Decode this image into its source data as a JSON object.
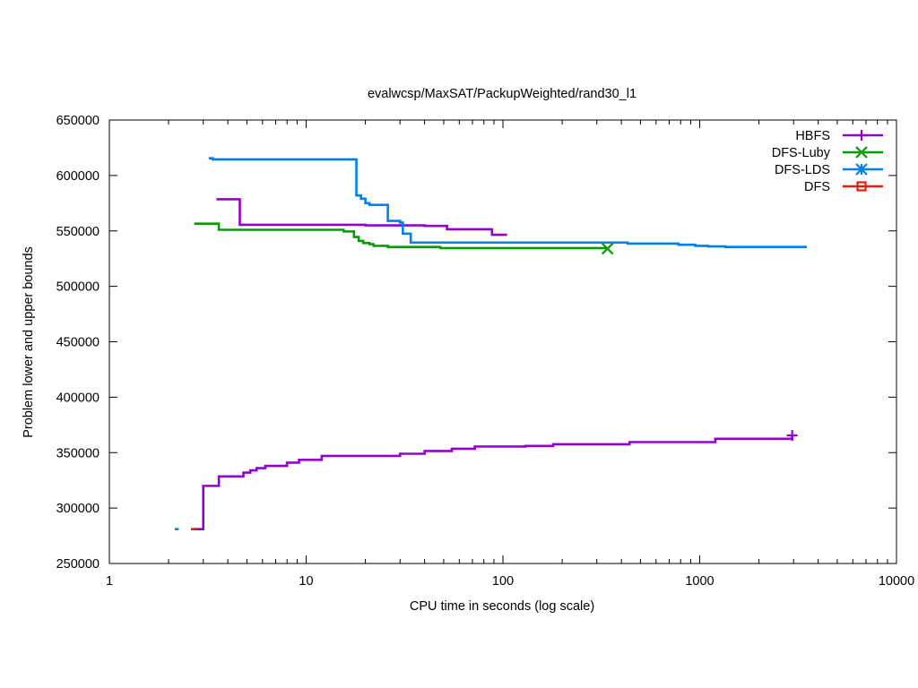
{
  "chart_data": {
    "type": "line",
    "title": "evalwcsp/MaxSAT/PackupWeighted/rand30_l1",
    "xlabel": "CPU time in seconds (log scale)",
    "ylabel": "Problem lower and upper bounds",
    "xscale": "log",
    "xlim": [
      1,
      10000
    ],
    "ylim": [
      250000,
      650000
    ],
    "grid": false,
    "legend_position": "top-right",
    "x_ticks": [
      1,
      10,
      100,
      1000,
      10000
    ],
    "x_tick_labels": [
      "1",
      "10",
      "100",
      "1000",
      "10000"
    ],
    "y_ticks": [
      250000,
      300000,
      350000,
      400000,
      450000,
      500000,
      550000,
      600000,
      650000
    ],
    "y_tick_labels": [
      "250000",
      "300000",
      "350000",
      "400000",
      "450000",
      "500000",
      "550000",
      "600000",
      "650000"
    ],
    "series": [
      {
        "name": "HBFS",
        "color": "#9400d3",
        "marker": "plus",
        "segments": [
          [
            [
              3.5,
              578500
            ],
            [
              4.6,
              578500
            ],
            [
              4.6,
              555500
            ],
            [
              20,
              555500
            ],
            [
              20,
              555000
            ],
            [
              40,
              555000
            ],
            [
              40,
              554500
            ],
            [
              52,
              554500
            ],
            [
              52,
              551500
            ],
            [
              88,
              551500
            ],
            [
              88,
              546500
            ],
            [
              105,
              546500
            ]
          ],
          [
            [
              2.6,
              281000
            ],
            [
              3.0,
              281000
            ],
            [
              3.0,
              320000
            ],
            [
              3.6,
              320000
            ],
            [
              3.6,
              328500
            ],
            [
              4.8,
              328500
            ],
            [
              4.8,
              332000
            ],
            [
              5.2,
              332000
            ],
            [
              5.2,
              334000
            ],
            [
              5.6,
              334000
            ],
            [
              5.6,
              336000
            ],
            [
              6.2,
              336000
            ],
            [
              6.2,
              338000
            ],
            [
              8.0,
              338000
            ],
            [
              8.0,
              341000
            ],
            [
              9.2,
              341000
            ],
            [
              9.2,
              343500
            ],
            [
              12,
              343500
            ],
            [
              12,
              347000
            ],
            [
              30,
              347000
            ],
            [
              30,
              349000
            ],
            [
              40,
              349000
            ],
            [
              40,
              351500
            ],
            [
              55,
              351500
            ],
            [
              55,
              353500
            ],
            [
              72,
              353500
            ],
            [
              72,
              355500
            ],
            [
              130,
              355500
            ],
            [
              130,
              356000
            ],
            [
              180,
              356000
            ],
            [
              180,
              357500
            ],
            [
              440,
              357500
            ],
            [
              440,
              359500
            ],
            [
              1200,
              359500
            ],
            [
              1200,
              362500
            ],
            [
              2950,
              362500
            ],
            [
              2950,
              365500
            ]
          ]
        ],
        "end_points": [
          [
            2950,
            365500
          ]
        ]
      },
      {
        "name": "DFS-Luby",
        "color": "#009e00",
        "marker": "cross",
        "segments": [
          [
            [
              2.7,
              556500
            ],
            [
              3.6,
              556500
            ],
            [
              3.6,
              551000
            ],
            [
              15.5,
              551000
            ],
            [
              15.5,
              549500
            ],
            [
              17.5,
              549500
            ],
            [
              17.5,
              544500
            ],
            [
              18.5,
              544500
            ],
            [
              18.5,
              541000
            ],
            [
              19.5,
              541000
            ],
            [
              19.5,
              539000
            ],
            [
              21,
              539000
            ],
            [
              21,
              538000
            ],
            [
              22,
              538000
            ],
            [
              22,
              536500
            ],
            [
              26,
              536500
            ],
            [
              26,
              535500
            ],
            [
              48,
              535500
            ],
            [
              48,
              534500
            ],
            [
              340,
              534500
            ]
          ]
        ],
        "end_points": [
          [
            340,
            534000
          ]
        ]
      },
      {
        "name": "DFS-LDS",
        "color": "#0080e8",
        "marker": "star",
        "segments": [
          [
            [
              3.2,
              615500
            ],
            [
              3.35,
              615500
            ],
            [
              3.35,
              614500
            ],
            [
              18,
              614500
            ],
            [
              18,
              582000
            ],
            [
              19,
              582000
            ],
            [
              19,
              579000
            ],
            [
              20,
              579000
            ],
            [
              20,
              575000
            ],
            [
              21,
              575000
            ],
            [
              21,
              573500
            ],
            [
              26,
              573500
            ],
            [
              26,
              559000
            ],
            [
              30,
              559000
            ],
            [
              30,
              557500
            ],
            [
              31,
              557500
            ],
            [
              31,
              547500
            ],
            [
              34,
              547500
            ],
            [
              34,
              539500
            ],
            [
              430,
              539500
            ],
            [
              430,
              538500
            ],
            [
              780,
              538500
            ],
            [
              780,
              537500
            ],
            [
              950,
              537500
            ],
            [
              950,
              536500
            ],
            [
              1100,
              536500
            ],
            [
              1100,
              536000
            ],
            [
              1350,
              536000
            ],
            [
              1350,
              535500
            ],
            [
              3500,
              535500
            ]
          ],
          [
            [
              2.15,
              281000
            ],
            [
              2.25,
              281000
            ]
          ]
        ],
        "end_points": []
      },
      {
        "name": "DFS",
        "color": "#e51e10",
        "marker": "square",
        "segments": [
          [
            [
              2.62,
              281000
            ],
            [
              2.8,
              281000
            ]
          ]
        ],
        "end_points": []
      }
    ]
  }
}
